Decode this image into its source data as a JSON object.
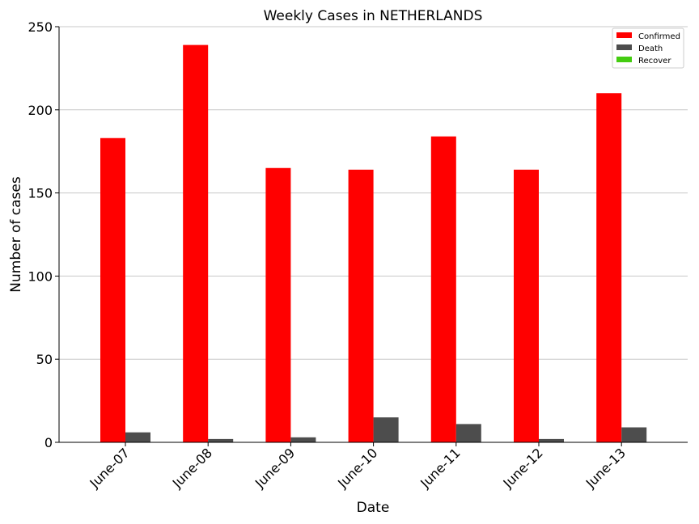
{
  "chart_data": {
    "type": "bar",
    "title": "Weekly Cases in NETHERLANDS",
    "xlabel": "Date",
    "ylabel": "Number of cases",
    "ylim": [
      0,
      250
    ],
    "yticks": [
      "0",
      "50",
      "100",
      "150",
      "200",
      "250"
    ],
    "categories": [
      "June-07",
      "June-08",
      "June-09",
      "June-10",
      "June-11",
      "June-12",
      "June-13"
    ],
    "grid": "horizontal",
    "legend_position": "top-right",
    "series": [
      {
        "name": "Confirmed",
        "color": "#ff0000",
        "values": [
          183,
          239,
          165,
          164,
          184,
          164,
          210
        ]
      },
      {
        "name": "Death",
        "color": "#4d4d4d",
        "values": [
          6,
          2,
          3,
          15,
          11,
          2,
          9
        ]
      },
      {
        "name": "Recover",
        "color": "#44cc11",
        "values": [
          0,
          0,
          0,
          0,
          0,
          0,
          0
        ]
      }
    ]
  }
}
